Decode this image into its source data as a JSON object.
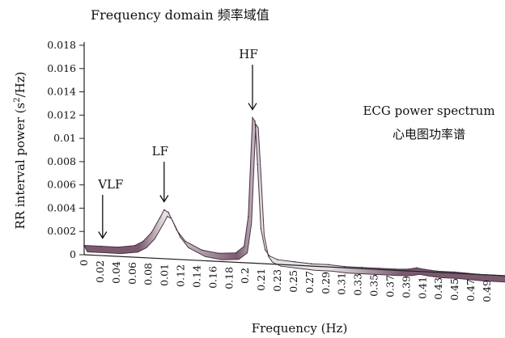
{
  "chart_data": {
    "type": "area",
    "title": "Frequency domain 频率域值",
    "xlabel": "Frequency (Hz)",
    "ylabel": "RR interval power (s²/Hz)",
    "ylabel_main": "RR interval power (s",
    "ylabel_sup": "2",
    "ylabel_end": "/Hz)",
    "ylim": [
      0,
      0.018
    ],
    "y_ticks": [
      "0",
      "0.002",
      "0.004",
      "0.006",
      "0.008",
      "0.01",
      "0.012",
      "0.014",
      "0.016",
      "0.018"
    ],
    "x_ticks": [
      "0",
      "0.02",
      "0.04",
      "0.06",
      "0.08",
      "0.01",
      "0.12",
      "0.14",
      "0.16",
      "0.18",
      "0.2",
      "0.21",
      "0.23",
      "0.25",
      "0.27",
      "0.29",
      "0.31",
      "0.33",
      "0.35",
      "0.37",
      "0.39",
      "0.41",
      "0.43",
      "0.45",
      "0.47",
      "0.49"
    ],
    "series": [
      {
        "x": [
          0,
          0.02,
          0.04,
          0.06,
          0.07,
          0.08,
          0.09,
          0.095,
          0.1,
          0.105,
          0.11,
          0.12,
          0.14,
          0.16,
          0.18,
          0.19,
          0.195,
          0.2,
          0.203,
          0.206,
          0.21,
          0.215,
          0.22,
          0.23,
          0.25,
          0.27,
          0.29,
          0.31,
          0.33,
          0.35,
          0.37,
          0.385,
          0.395,
          0.405,
          0.42,
          0.44,
          0.47,
          0.5
        ],
        "y": [
          0.0008,
          0.0008,
          0.0008,
          0.001,
          0.0014,
          0.0022,
          0.0035,
          0.0042,
          0.004,
          0.0033,
          0.0025,
          0.0016,
          0.0009,
          0.0007,
          0.0008,
          0.0014,
          0.004,
          0.0125,
          0.0122,
          0.0085,
          0.003,
          0.0012,
          0.0007,
          0.0004,
          0.0003,
          0.0002,
          0.0002,
          0.0001,
          0.0001,
          0.0001,
          0.0001,
          0.00015,
          0.0003,
          0.0002,
          0.0001,
          0.0001,
          0,
          0
        ]
      }
    ],
    "annotations": [
      {
        "label": "VLF",
        "x": 0.02,
        "y": 0.0008
      },
      {
        "label": "LF",
        "x": 0.095,
        "y": 0.0042
      },
      {
        "label": "HF",
        "x": 0.2,
        "y": 0.0125
      }
    ],
    "inset_title": [
      "ECG power spectrum",
      "心电图功率谱"
    ],
    "colors": {
      "band_dark": "#7b5a70",
      "band_light": "#e6e3e5",
      "band_stroke": "#4a3344"
    },
    "grid": false
  }
}
